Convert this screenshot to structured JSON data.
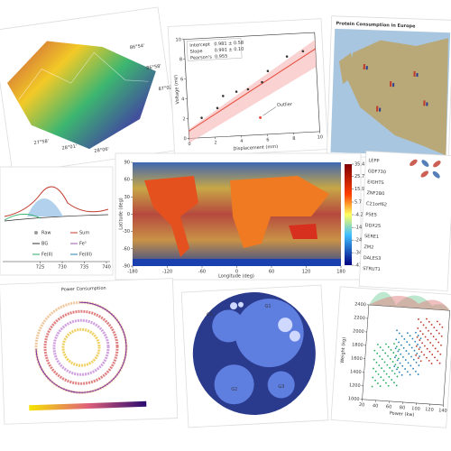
{
  "panels": {
    "terrain": {
      "labels": [
        "27°58'",
        "28°01'",
        "28°06'",
        "86°54'",
        "86°58'",
        "87°02'"
      ]
    },
    "fit": {
      "stats": [
        {
          "name": "Intercept",
          "value": "0.981 ± 0.58"
        },
        {
          "name": "Slope",
          "value": "0.991 ± 0.10"
        },
        {
          "name": "Pearson's",
          "value": "0.955"
        }
      ],
      "xlabel": "Displacement (mm)",
      "ylabel": "Voltage (mV)",
      "annotation": "Outlier",
      "xlim": [
        0,
        10
      ],
      "ylim": [
        0,
        10
      ],
      "xticks": [
        0,
        2,
        4,
        6,
        8,
        10
      ],
      "yticks": [
        0,
        2,
        4,
        6,
        8,
        10
      ]
    },
    "europe": {
      "title": "Protein Consumption in Europe"
    },
    "spectrum": {
      "legend": [
        "Raw",
        "Sum",
        "BG",
        "Fe⁰",
        "Fe(II)",
        "Fe(III)"
      ],
      "xlim": [
        720,
        740
      ],
      "xticks": [
        725,
        730,
        735,
        740
      ]
    },
    "heatmap": {
      "xlabel": "Longitude (deg)",
      "ylabel": "Latitude (deg)",
      "xlim": [
        -180,
        180
      ],
      "ylim": [
        -90,
        90
      ],
      "xticks": [
        -180,
        -120,
        -60,
        0,
        60,
        120,
        180
      ],
      "yticks": [
        -90,
        -60,
        -30,
        0,
        30,
        60,
        90
      ],
      "clim": [
        -43.8,
        35.4
      ],
      "cticks": [
        35.4,
        25.7,
        15.9,
        5.7,
        -4.2,
        -14.2,
        -24.1,
        -34.0,
        -43.8
      ]
    },
    "correlation": {
      "rows": [
        "LEPP",
        "GDF730",
        "EIGHTS",
        "ZNF2B0",
        "C21orf62",
        "PSE5",
        "DDX25",
        "SERE1",
        "ZM2",
        "DALES3",
        "STRUT1"
      ]
    },
    "circular": {
      "title": "Power Consumption"
    },
    "bubbles": {
      "labels": [
        "G5",
        "G1",
        "G2",
        "G3"
      ]
    },
    "scatter": {
      "xlabel": "Power (kw)",
      "ylabel": "Weight (kg)",
      "xlim": [
        20,
        140
      ],
      "ylim": [
        1000,
        2400
      ],
      "xticks": [
        20,
        40,
        60,
        80,
        100,
        120,
        140
      ],
      "yticks": [
        1000,
        1200,
        1400,
        1600,
        1800,
        2000,
        2200,
        2400
      ]
    }
  }
}
